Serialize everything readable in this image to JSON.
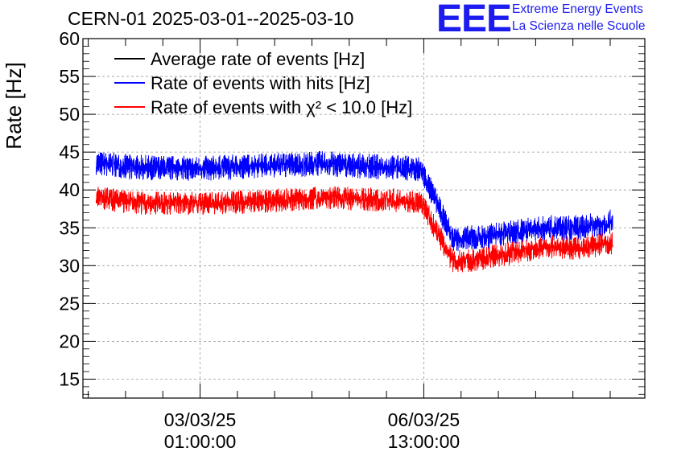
{
  "header": {
    "title": "CERN-01 2025-03-01--2025-03-10",
    "logo_text": "EEE",
    "brand_line1": "Extreme Energy Events",
    "brand_line2": "La Scienza nelle Scuole"
  },
  "chart_data": {
    "type": "line",
    "title": "CERN-01 2025-03-01--2025-03-10",
    "xlabel": "",
    "ylabel": "Rate [Hz]",
    "ylim": [
      12.5,
      60
    ],
    "xlim": [
      "2025-03-01T05:00:00",
      "2025-03-10T00:00:00"
    ],
    "yticks": [
      15,
      20,
      25,
      30,
      35,
      40,
      45,
      50,
      55,
      60
    ],
    "xticks": [
      {
        "x": "2025-03-03T01:00:00",
        "line1": "03/03/25",
        "line2": "01:00:00"
      },
      {
        "x": "2025-03-06T13:00:00",
        "line1": "06/03/25",
        "line2": "13:00:00"
      }
    ],
    "grid": true,
    "legend_position": "top-left",
    "legend": [
      {
        "label": "Average rate of events [Hz]",
        "color": "#000000"
      },
      {
        "label": "Rate of events with hits [Hz]",
        "color": "#0000ff"
      },
      {
        "label": "Rate of events with χ² < 10.0 [Hz]",
        "color": "#ff0000"
      }
    ],
    "series": [
      {
        "name": "Rate of events with hits [Hz]",
        "color": "#0000ff",
        "x": [
          "2025-03-01T10:00:00",
          "2025-03-02T00:00:00",
          "2025-03-03T00:00:00",
          "2025-03-04T00:00:00",
          "2025-03-05T00:00:00",
          "2025-03-05T12:00:00",
          "2025-03-06T00:00:00",
          "2025-03-06T12:00:00",
          "2025-03-07T00:00:00",
          "2025-03-07T12:00:00",
          "2025-03-08T00:00:00",
          "2025-03-08T12:00:00",
          "2025-03-09T00:00:00",
          "2025-03-09T12:00:00"
        ],
        "y": [
          43.5,
          43.0,
          42.8,
          43.2,
          43.5,
          43.2,
          43.0,
          42.8,
          33.5,
          33.8,
          34.5,
          35.0,
          35.0,
          35.8
        ],
        "spread": 1.4
      },
      {
        "name": "Rate of events with χ² < 10.0 [Hz]",
        "color": "#ff0000",
        "x": [
          "2025-03-01T10:00:00",
          "2025-03-02T00:00:00",
          "2025-03-03T00:00:00",
          "2025-03-04T00:00:00",
          "2025-03-05T00:00:00",
          "2025-03-05T12:00:00",
          "2025-03-06T00:00:00",
          "2025-03-06T12:00:00",
          "2025-03-07T00:00:00",
          "2025-03-07T12:00:00",
          "2025-03-08T00:00:00",
          "2025-03-08T12:00:00",
          "2025-03-09T00:00:00",
          "2025-03-09T12:00:00"
        ],
        "y": [
          39.0,
          38.3,
          38.2,
          38.5,
          39.0,
          38.8,
          38.7,
          38.4,
          30.5,
          31.0,
          31.8,
          32.5,
          32.3,
          33.0
        ],
        "spread": 1.3
      }
    ]
  }
}
